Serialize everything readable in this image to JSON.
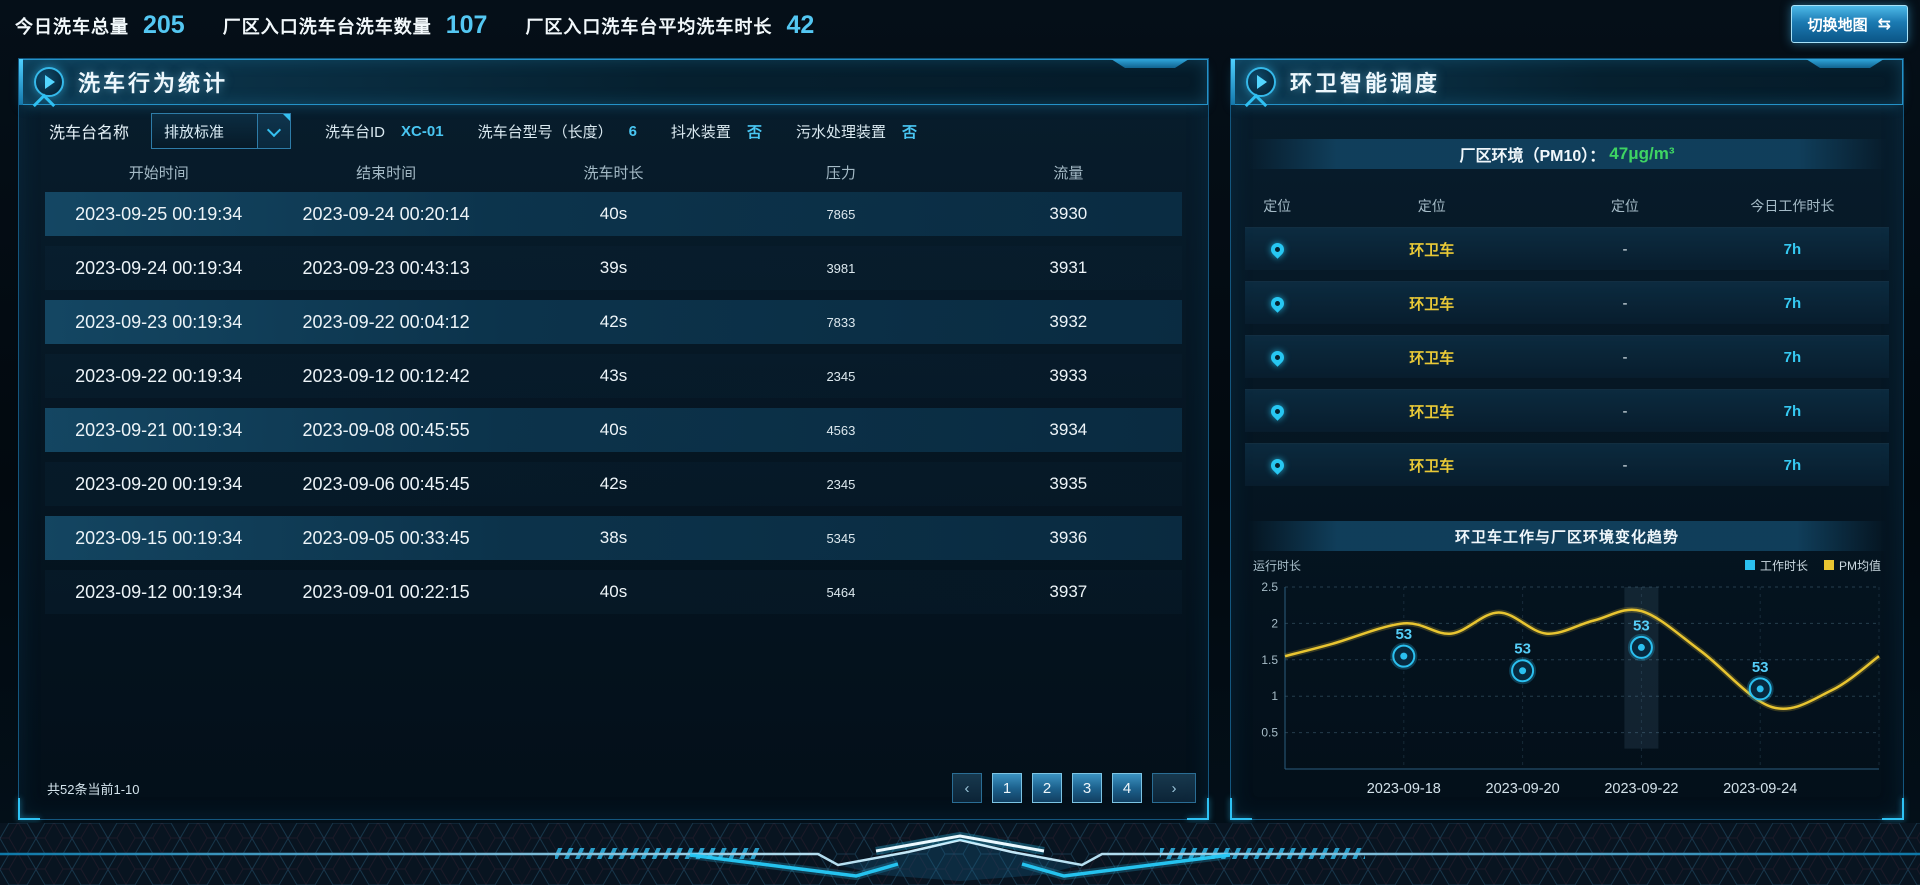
{
  "header": {
    "stats": [
      {
        "label": "今日洗车总量",
        "value": "205"
      },
      {
        "label": "厂区入口洗车台洗车数量",
        "value": "107"
      },
      {
        "label": "厂区入口洗车台平均洗车时长",
        "value": "42"
      }
    ],
    "map_button": "切换地图",
    "map_button_icon": "⇆"
  },
  "left_panel": {
    "title": "洗车行为统计",
    "filters": {
      "name_label": "洗车台名称",
      "selected": "排放标准",
      "fields": [
        {
          "label": "洗车台ID",
          "value": "XC-01"
        },
        {
          "label": "洗车台型号（长度）",
          "value": "6"
        },
        {
          "label": "抖水装置",
          "value": "否"
        },
        {
          "label": "污水处理装置",
          "value": "否"
        }
      ]
    },
    "table": {
      "columns": [
        "开始时间",
        "结束时间",
        "洗车时长",
        "压力",
        "流量"
      ],
      "rows": [
        [
          "2023-09-25 00:19:34",
          "2023-09-24 00:20:14",
          "40s",
          "7865",
          "3930"
        ],
        [
          "2023-09-24 00:19:34",
          "2023-09-23 00:43:13",
          "39s",
          "3981",
          "3931"
        ],
        [
          "2023-09-23 00:19:34",
          "2023-09-22 00:04:12",
          "42s",
          "7833",
          "3932"
        ],
        [
          "2023-09-22 00:19:34",
          "2023-09-12 00:12:42",
          "43s",
          "2345",
          "3933"
        ],
        [
          "2023-09-21 00:19:34",
          "2023-09-08 00:45:55",
          "40s",
          "4563",
          "3934"
        ],
        [
          "2023-09-20 00:19:34",
          "2023-09-06 00:45:45",
          "42s",
          "2345",
          "3935"
        ],
        [
          "2023-09-15 00:19:34",
          "2023-09-05 00:33:45",
          "38s",
          "5345",
          "3936"
        ],
        [
          "2023-09-12 00:19:34",
          "2023-09-01 00:22:15",
          "40s",
          "5464",
          "3937"
        ]
      ]
    },
    "pagination": {
      "summary": "共52条当前1-10",
      "prev": "‹",
      "pages": [
        "1",
        "2",
        "3",
        "4"
      ],
      "next": "›",
      "current": "1"
    }
  },
  "right_panel": {
    "title": "环卫智能调度",
    "env_label": "厂区环境（PM10）：",
    "env_value": "47μg/m³",
    "vehicles": {
      "columns": [
        "定位",
        "定位",
        "定位",
        "今日工作时长"
      ],
      "rows": [
        {
          "name": "环卫车",
          "col3": "-",
          "hours": "7h"
        },
        {
          "name": "环卫车",
          "col3": "-",
          "hours": "7h"
        },
        {
          "name": "环卫车",
          "col3": "-",
          "hours": "7h"
        },
        {
          "name": "环卫车",
          "col3": "-",
          "hours": "7h"
        },
        {
          "name": "环卫车",
          "col3": "-",
          "hours": "7h"
        }
      ]
    },
    "chart_title": "环卫车工作与厂区环境变化趋势"
  },
  "chart_data": {
    "type": "line",
    "title": "环卫车工作与厂区环境变化趋势",
    "ylabel": "运行时长",
    "categories": [
      "2023-09-18",
      "2023-09-20",
      "2023-09-22",
      "2023-09-24"
    ],
    "yticks": [
      0.5,
      1,
      1.5,
      2,
      2.5
    ],
    "ylim": [
      0,
      2.5
    ],
    "grid": true,
    "legend_position": "top-right",
    "highlight_category": "2023-09-22",
    "series": [
      {
        "name": "工作时长",
        "type": "lollipop",
        "color": "#2bc0f0",
        "values": [
          1.55,
          1.35,
          1.67,
          1.1
        ],
        "point_labels": [
          "53",
          "53",
          "53",
          "53"
        ]
      },
      {
        "name": "PM均值",
        "type": "smooth_line",
        "color": "#e9c531",
        "curve_points": [
          [
            0,
            1.55
          ],
          [
            0.08,
            1.72
          ],
          [
            0.2,
            2.0
          ],
          [
            0.28,
            1.86
          ],
          [
            0.36,
            2.15
          ],
          [
            0.44,
            1.86
          ],
          [
            0.52,
            2.04
          ],
          [
            0.6,
            2.17
          ],
          [
            0.7,
            1.62
          ],
          [
            0.82,
            0.85
          ],
          [
            0.92,
            1.08
          ],
          [
            1,
            1.55
          ]
        ]
      }
    ]
  },
  "icons": {
    "panel_marker": "play-icon",
    "vehicle_locate": "location-pin",
    "dropdown": "chevron-down",
    "map_button": "swap-arrows"
  }
}
